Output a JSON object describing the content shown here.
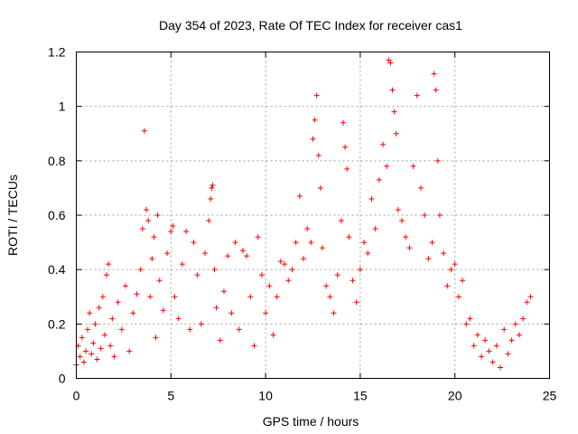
{
  "chart_data": {
    "type": "scatter",
    "title": "Day 354 of 2023, Rate Of TEC Index for receiver cas1",
    "xlabel": "GPS time / hours",
    "ylabel": "ROTI / TECUs",
    "xlim": [
      0,
      25
    ],
    "ylim": [
      0,
      1.2
    ],
    "xticks": [
      0,
      5,
      10,
      15,
      20,
      25
    ],
    "xtick_labels": [
      "0",
      "5",
      "10",
      "15",
      "20",
      "25"
    ],
    "yticks": [
      0,
      0.2,
      0.4,
      0.6,
      0.8,
      1,
      1.2
    ],
    "ytick_labels": [
      "0",
      "0.2",
      "0.4",
      "0.6",
      "0.8",
      "1",
      "1.2"
    ],
    "grid": true,
    "marker": "plus",
    "color": "#ff0000",
    "series": [
      {
        "points": [
          [
            0.0,
            0.05
          ],
          [
            0.1,
            0.12
          ],
          [
            0.2,
            0.08
          ],
          [
            0.3,
            0.15
          ],
          [
            0.4,
            0.06
          ],
          [
            0.5,
            0.1
          ],
          [
            0.6,
            0.18
          ],
          [
            0.7,
            0.24
          ],
          [
            0.8,
            0.09
          ],
          [
            0.9,
            0.13
          ],
          [
            1.0,
            0.2
          ],
          [
            1.1,
            0.07
          ],
          [
            1.2,
            0.26
          ],
          [
            1.3,
            0.11
          ],
          [
            1.4,
            0.3
          ],
          [
            1.5,
            0.16
          ],
          [
            1.6,
            0.38
          ],
          [
            1.7,
            0.42
          ],
          [
            1.8,
            0.12
          ],
          [
            1.9,
            0.22
          ],
          [
            2.0,
            0.08
          ],
          [
            2.2,
            0.28
          ],
          [
            2.4,
            0.18
          ],
          [
            2.6,
            0.34
          ],
          [
            2.8,
            0.1
          ],
          [
            3.0,
            0.24
          ],
          [
            3.2,
            0.31
          ],
          [
            3.4,
            0.4
          ],
          [
            3.5,
            0.55
          ],
          [
            3.6,
            0.91
          ],
          [
            3.7,
            0.62
          ],
          [
            3.8,
            0.58
          ],
          [
            3.9,
            0.3
          ],
          [
            4.0,
            0.44
          ],
          [
            4.1,
            0.52
          ],
          [
            4.2,
            0.15
          ],
          [
            4.3,
            0.6
          ],
          [
            4.4,
            0.36
          ],
          [
            4.6,
            0.25
          ],
          [
            4.8,
            0.46
          ],
          [
            5.0,
            0.54
          ],
          [
            5.1,
            0.56
          ],
          [
            5.2,
            0.3
          ],
          [
            5.4,
            0.22
          ],
          [
            5.6,
            0.42
          ],
          [
            5.8,
            0.54
          ],
          [
            6.0,
            0.18
          ],
          [
            6.2,
            0.5
          ],
          [
            6.4,
            0.38
          ],
          [
            6.6,
            0.2
          ],
          [
            6.8,
            0.46
          ],
          [
            7.0,
            0.58
          ],
          [
            7.1,
            0.66
          ],
          [
            7.15,
            0.7
          ],
          [
            7.2,
            0.71
          ],
          [
            7.3,
            0.4
          ],
          [
            7.4,
            0.26
          ],
          [
            7.6,
            0.14
          ],
          [
            7.8,
            0.32
          ],
          [
            8.0,
            0.45
          ],
          [
            8.2,
            0.24
          ],
          [
            8.4,
            0.5
          ],
          [
            8.6,
            0.18
          ],
          [
            8.8,
            0.47
          ],
          [
            9.0,
            0.45
          ],
          [
            9.2,
            0.3
          ],
          [
            9.4,
            0.12
          ],
          [
            9.6,
            0.52
          ],
          [
            9.8,
            0.38
          ],
          [
            10.0,
            0.24
          ],
          [
            10.2,
            0.34
          ],
          [
            10.4,
            0.16
          ],
          [
            10.6,
            0.3
          ],
          [
            10.8,
            0.43
          ],
          [
            11.0,
            0.42
          ],
          [
            11.2,
            0.36
          ],
          [
            11.4,
            0.4
          ],
          [
            11.6,
            0.5
          ],
          [
            11.8,
            0.67
          ],
          [
            12.0,
            0.44
          ],
          [
            12.2,
            0.55
          ],
          [
            12.4,
            0.5
          ],
          [
            12.5,
            0.88
          ],
          [
            12.6,
            0.95
          ],
          [
            12.7,
            1.04
          ],
          [
            12.8,
            0.82
          ],
          [
            12.9,
            0.7
          ],
          [
            13.0,
            0.48
          ],
          [
            13.2,
            0.34
          ],
          [
            13.4,
            0.3
          ],
          [
            13.6,
            0.24
          ],
          [
            13.8,
            0.38
          ],
          [
            14.0,
            0.58
          ],
          [
            14.1,
            0.94
          ],
          [
            14.2,
            0.85
          ],
          [
            14.3,
            0.77
          ],
          [
            14.4,
            0.52
          ],
          [
            14.6,
            0.36
          ],
          [
            14.8,
            0.28
          ],
          [
            15.0,
            0.4
          ],
          [
            15.2,
            0.5
          ],
          [
            15.4,
            0.46
          ],
          [
            15.6,
            0.66
          ],
          [
            15.8,
            0.55
          ],
          [
            16.0,
            0.73
          ],
          [
            16.2,
            0.86
          ],
          [
            16.4,
            0.78
          ],
          [
            16.5,
            1.17
          ],
          [
            16.6,
            1.16
          ],
          [
            16.7,
            1.06
          ],
          [
            16.8,
            0.98
          ],
          [
            16.9,
            0.9
          ],
          [
            17.0,
            0.62
          ],
          [
            17.2,
            0.58
          ],
          [
            17.4,
            0.52
          ],
          [
            17.6,
            0.48
          ],
          [
            17.8,
            0.78
          ],
          [
            18.0,
            1.04
          ],
          [
            18.2,
            0.7
          ],
          [
            18.4,
            0.6
          ],
          [
            18.6,
            0.44
          ],
          [
            18.8,
            0.5
          ],
          [
            18.9,
            1.12
          ],
          [
            19.0,
            1.06
          ],
          [
            19.1,
            0.8
          ],
          [
            19.2,
            0.6
          ],
          [
            19.4,
            0.46
          ],
          [
            19.6,
            0.34
          ],
          [
            19.8,
            0.4
          ],
          [
            20.0,
            0.42
          ],
          [
            20.2,
            0.3
          ],
          [
            20.4,
            0.36
          ],
          [
            20.6,
            0.2
          ],
          [
            20.8,
            0.22
          ],
          [
            21.0,
            0.12
          ],
          [
            21.2,
            0.16
          ],
          [
            21.4,
            0.08
          ],
          [
            21.6,
            0.14
          ],
          [
            21.8,
            0.1
          ],
          [
            22.0,
            0.06
          ],
          [
            22.2,
            0.12
          ],
          [
            22.4,
            0.04
          ],
          [
            22.6,
            0.18
          ],
          [
            22.8,
            0.09
          ],
          [
            23.0,
            0.14
          ],
          [
            23.2,
            0.2
          ],
          [
            23.4,
            0.16
          ],
          [
            23.6,
            0.22
          ],
          [
            23.8,
            0.28
          ],
          [
            24.0,
            0.3
          ]
        ]
      }
    ]
  }
}
